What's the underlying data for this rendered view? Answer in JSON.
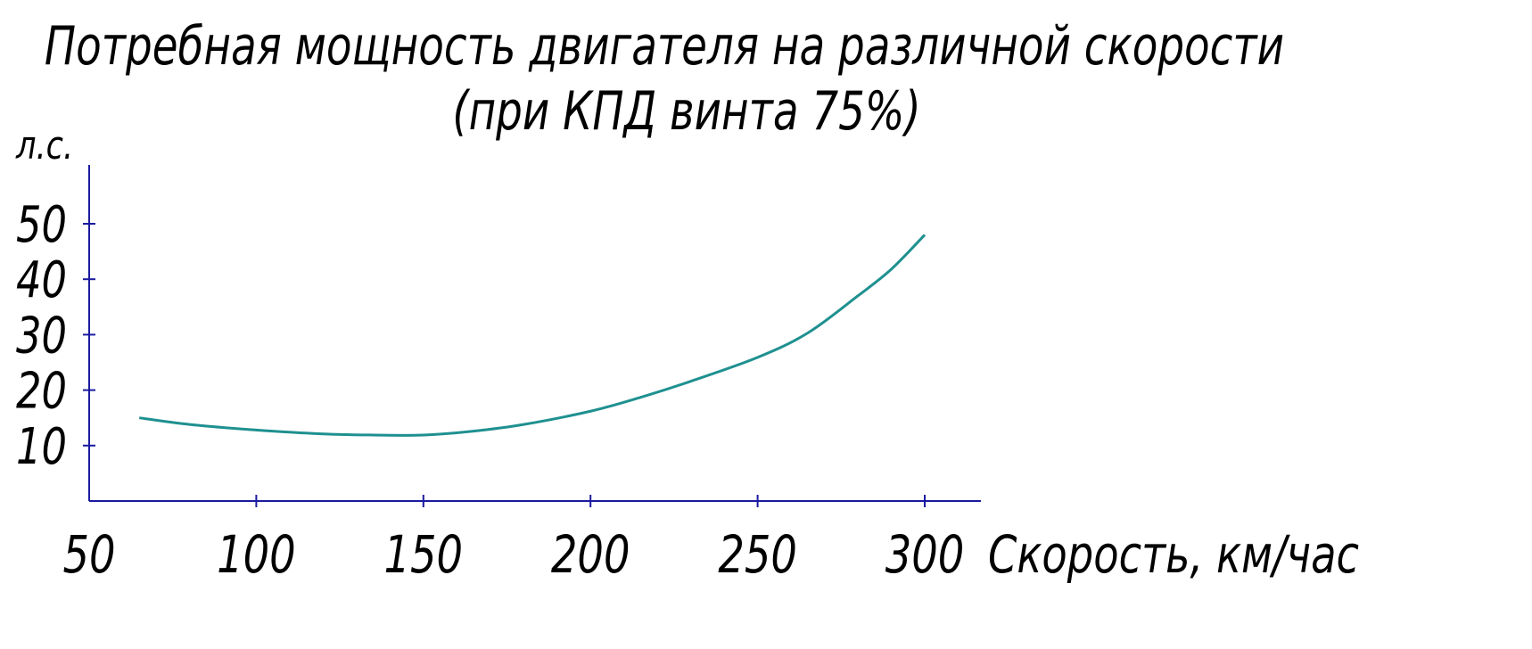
{
  "chart_data": {
    "type": "line",
    "title": "Потребная мощность двигателя на различной скорости",
    "subtitle": "(при КПД винта 75%)",
    "xlabel": "Скорость, км/час",
    "ylabel": "л.с.",
    "xlim": [
      50,
      315
    ],
    "ylim": [
      0,
      58
    ],
    "x_ticks": [
      50,
      100,
      150,
      200,
      250,
      300
    ],
    "x_tick_labels": [
      "50",
      "100",
      "150",
      "200",
      "250",
      "300"
    ],
    "y_ticks": [
      10,
      20,
      30,
      40,
      50
    ],
    "y_tick_labels": [
      "10",
      "20",
      "30",
      "40",
      "50"
    ],
    "grid": false,
    "axis_color": "#1a1aa0",
    "line_color": "#1f9090",
    "series": [
      {
        "x": [
          65,
          80,
          100,
          120,
          135,
          150,
          165,
          180,
          200,
          215,
          230,
          250,
          265,
          280,
          290,
          300
        ],
        "y": [
          15,
          13.8,
          12.8,
          12.1,
          11.9,
          11.9,
          12.6,
          13.8,
          16.2,
          18.7,
          21.6,
          25.9,
          30.3,
          37,
          41.8,
          48
        ]
      }
    ]
  }
}
